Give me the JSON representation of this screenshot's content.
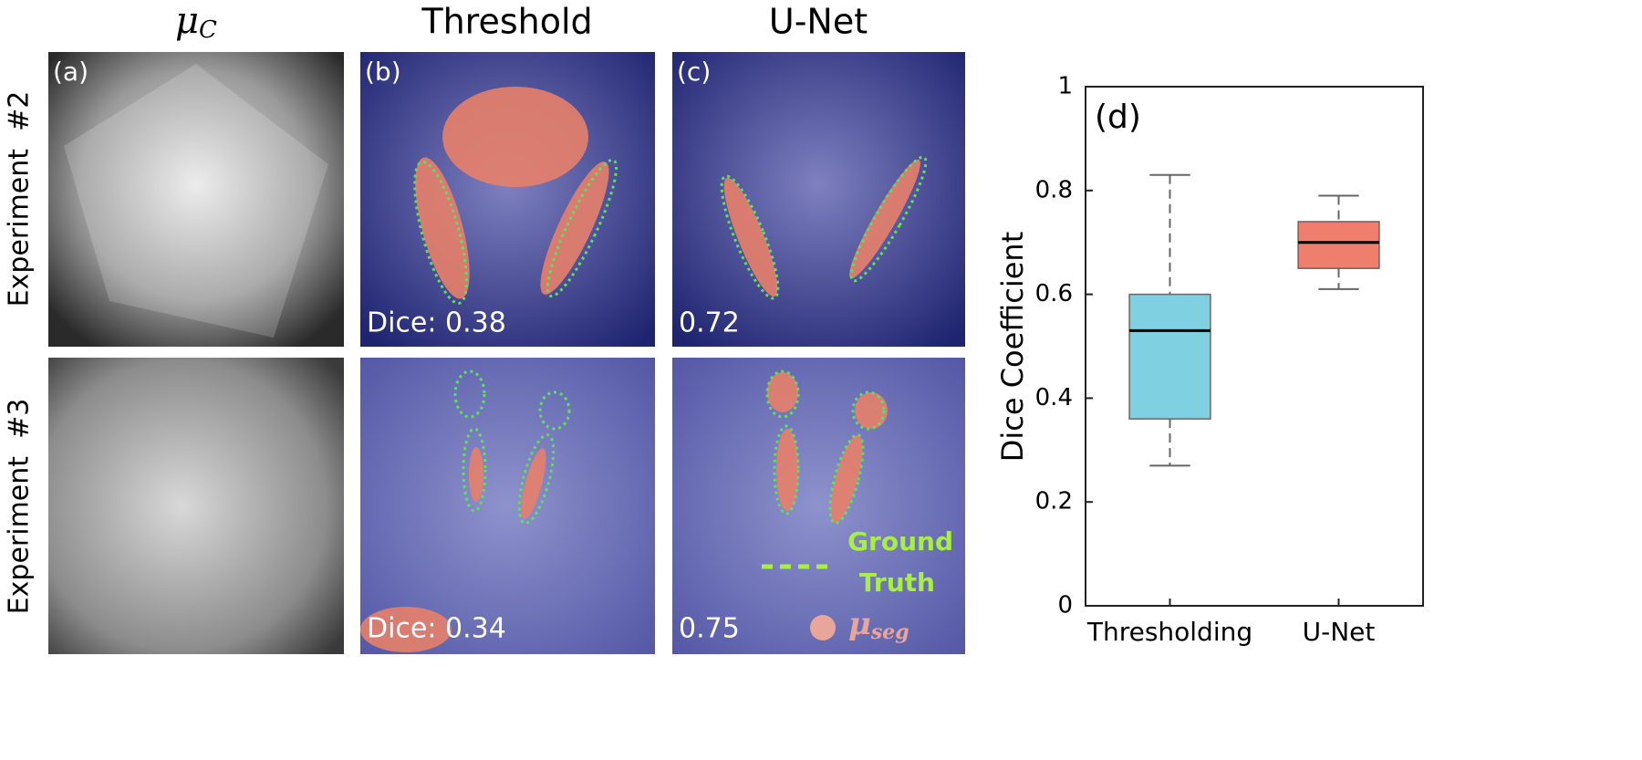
{
  "column_titles": {
    "mu": {
      "symbol": "μ",
      "subscript": "C"
    },
    "threshold": "Threshold",
    "unet": "U-Net"
  },
  "row_labels": [
    "Experiment  #2",
    "Experiment  #3"
  ],
  "panel_letters": [
    "(a)",
    "(b)",
    "(c)"
  ],
  "dice_labels": [
    "Dice: 0.38",
    "0.72",
    "Dice: 0.34",
    "0.75"
  ],
  "legend": {
    "ground_truth": [
      "Ground",
      "Truth"
    ],
    "segmentation": {
      "symbol": "μ",
      "subscript": "seg"
    }
  },
  "chart_data": {
    "type": "box",
    "panel_label": "(d)",
    "y_label": "Dice Coefficient",
    "categories": [
      "Thresholding",
      "U-Net"
    ],
    "boxes": [
      {
        "min": 0.27,
        "q1": 0.36,
        "median": 0.53,
        "q3": 0.6,
        "max": 0.83,
        "color": "#7fd0e0"
      },
      {
        "min": 0.61,
        "q1": 0.65,
        "median": 0.7,
        "q3": 0.74,
        "max": 0.79,
        "color": "#ef7f6c"
      }
    ],
    "ylim": [
      0,
      1
    ],
    "yticks": [
      0,
      0.2,
      0.4,
      0.6,
      0.8,
      1
    ]
  }
}
